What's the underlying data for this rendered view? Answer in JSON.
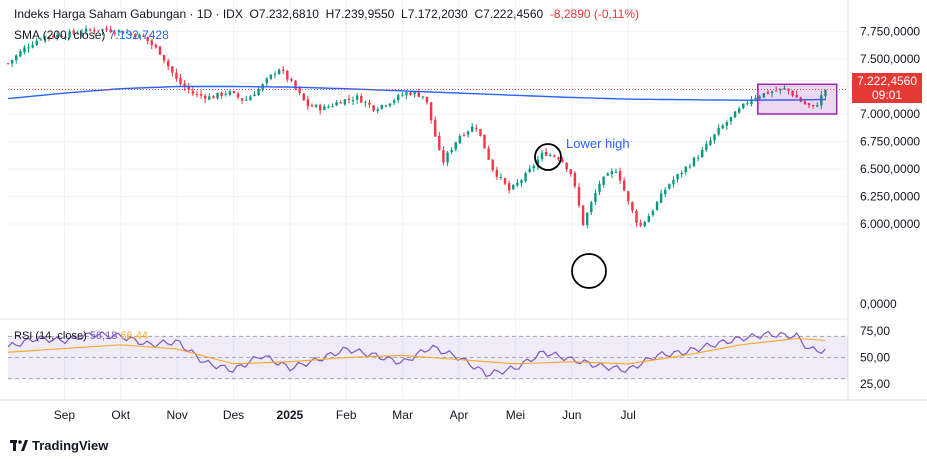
{
  "header": {
    "symbol": "Indeks Harga Saham Gabungan",
    "interval": "1D",
    "exchange": "IDX",
    "o_label": "O",
    "o": "7.232,6810",
    "h_label": "H",
    "h": "7.239,9550",
    "l_label": "L",
    "l": "7.172,2030",
    "c_label": "C",
    "c": "7.222,4560",
    "change": "-8,2890 (-0,11%)"
  },
  "sma": {
    "label": "SMA (200, close)",
    "value": "7.132,7428",
    "color": "#2962ff"
  },
  "rsi": {
    "label": "RSI (14, close)",
    "value": "56,18",
    "ma_value": "66,44",
    "color": "#7e57c2",
    "ma_color": "#f9a825"
  },
  "last_price": {
    "value": "7.222,4560",
    "countdown": "09:01",
    "color": "#e53935"
  },
  "annotation": {
    "text": "Lower high"
  },
  "branding": {
    "text": "TradingView"
  },
  "colors": {
    "up": "#089981",
    "down": "#f23645",
    "sma": "#2962ff",
    "rsi": "#7e57c2",
    "rsi_ma": "#f9a825",
    "box": "#9c27b0"
  },
  "chart_data": {
    "type": "candlestick",
    "price_axis": {
      "ticks": [
        7750,
        7500,
        7250,
        7000,
        6750,
        6500,
        6250,
        6000,
        0
      ],
      "labels": [
        "7.750,0000",
        "7.500,0000",
        "7.250,0000",
        "7.000,0000",
        "6.750,0000",
        "6.500,0000",
        "6.250,0000",
        "6.000,0000",
        "0,0000"
      ]
    },
    "rsi_axis": {
      "ticks": [
        75,
        50,
        25
      ],
      "labels": [
        "75,00",
        "50,00",
        "25,00"
      ]
    },
    "time_axis": {
      "labels": [
        "Sep",
        "Okt",
        "Nov",
        "Des",
        "2025",
        "Feb",
        "Mar",
        "Apr",
        "Mei",
        "Jun",
        "Jul"
      ],
      "months_index": [
        1,
        2,
        3,
        4,
        5,
        6,
        7,
        8,
        9,
        10,
        11
      ]
    },
    "close_path": [
      [
        0,
        7460
      ],
      [
        0.3,
        7600
      ],
      [
        0.6,
        7700
      ],
      [
        1.0,
        7720
      ],
      [
        1.3,
        7750
      ],
      [
        1.6,
        7770
      ],
      [
        1.9,
        7760
      ],
      [
        2.1,
        7740
      ],
      [
        2.4,
        7700
      ],
      [
        2.7,
        7560
      ],
      [
        3.0,
        7300
      ],
      [
        3.3,
        7180
      ],
      [
        3.6,
        7150
      ],
      [
        3.9,
        7200
      ],
      [
        4.2,
        7120
      ],
      [
        4.5,
        7250
      ],
      [
        4.8,
        7420
      ],
      [
        5.0,
        7300
      ],
      [
        5.3,
        7080
      ],
      [
        5.6,
        7050
      ],
      [
        5.9,
        7120
      ],
      [
        6.2,
        7150
      ],
      [
        6.5,
        7050
      ],
      [
        6.8,
        7120
      ],
      [
        7.1,
        7200
      ],
      [
        7.4,
        7160
      ],
      [
        7.7,
        6550
      ],
      [
        8.0,
        6800
      ],
      [
        8.3,
        6900
      ],
      [
        8.6,
        6500
      ],
      [
        8.9,
        6300
      ],
      [
        9.2,
        6450
      ],
      [
        9.5,
        6650
      ],
      [
        9.8,
        6600
      ],
      [
        10.0,
        6450
      ],
      [
        10.2,
        6000
      ],
      [
        10.5,
        6380
      ],
      [
        10.8,
        6500
      ],
      [
        11.0,
        6200
      ],
      [
        11.2,
        5970
      ],
      [
        11.4,
        6100
      ],
      [
        11.7,
        6350
      ],
      [
        12.0,
        6500
      ],
      [
        12.3,
        6650
      ],
      [
        12.6,
        6850
      ],
      [
        12.9,
        7000
      ],
      [
        13.2,
        7150
      ],
      [
        13.5,
        7200
      ],
      [
        13.8,
        7230
      ],
      [
        14.1,
        7100
      ],
      [
        14.3,
        7050
      ],
      [
        14.5,
        7222
      ]
    ],
    "sma_path": [
      [
        0,
        7140
      ],
      [
        1.0,
        7190
      ],
      [
        2.0,
        7230
      ],
      [
        3.0,
        7250
      ],
      [
        4.0,
        7250
      ],
      [
        5.0,
        7245
      ],
      [
        6.0,
        7230
      ],
      [
        7.0,
        7210
      ],
      [
        8.0,
        7190
      ],
      [
        9.0,
        7170
      ],
      [
        10.0,
        7150
      ],
      [
        11.0,
        7135
      ],
      [
        12.0,
        7130
      ],
      [
        13.0,
        7125
      ],
      [
        14.0,
        7128
      ],
      [
        14.5,
        7132
      ]
    ],
    "rsi_path": [
      [
        0,
        60
      ],
      [
        0.5,
        68
      ],
      [
        1.0,
        66
      ],
      [
        1.5,
        72
      ],
      [
        2.0,
        70
      ],
      [
        2.5,
        62
      ],
      [
        3.0,
        65
      ],
      [
        3.5,
        45
      ],
      [
        4.0,
        38
      ],
      [
        4.5,
        52
      ],
      [
        5.0,
        40
      ],
      [
        5.5,
        48
      ],
      [
        6.0,
        58
      ],
      [
        6.5,
        52
      ],
      [
        7.0,
        45
      ],
      [
        7.5,
        60
      ],
      [
        8.0,
        50
      ],
      [
        8.5,
        34
      ],
      [
        9.0,
        40
      ],
      [
        9.5,
        55
      ],
      [
        10.0,
        48
      ],
      [
        10.5,
        42
      ],
      [
        11.0,
        38
      ],
      [
        11.5,
        52
      ],
      [
        12.0,
        55
      ],
      [
        12.5,
        62
      ],
      [
        13.0,
        68
      ],
      [
        13.5,
        72
      ],
      [
        14.0,
        70
      ],
      [
        14.2,
        58
      ],
      [
        14.5,
        56
      ]
    ],
    "rsi_ma_path": [
      [
        0,
        55
      ],
      [
        2.0,
        62
      ],
      [
        3.0,
        58
      ],
      [
        4.0,
        44
      ],
      [
        5.0,
        46
      ],
      [
        6.0,
        50
      ],
      [
        7.0,
        52
      ],
      [
        8.0,
        48
      ],
      [
        9.0,
        44
      ],
      [
        10.0,
        46
      ],
      [
        11.0,
        44
      ],
      [
        12.0,
        52
      ],
      [
        13.0,
        62
      ],
      [
        14.0,
        68
      ],
      [
        14.5,
        66
      ]
    ],
    "markers": [
      {
        "label": "Lower high",
        "at": [
          9.7,
          6680
        ]
      },
      {
        "label": "",
        "at": [
          11.15,
          5900
        ]
      }
    ],
    "highlight_box": {
      "x": [
        13.3,
        14.7
      ],
      "y": [
        7000,
        7270
      ]
    },
    "last_close_line": 7222
  }
}
